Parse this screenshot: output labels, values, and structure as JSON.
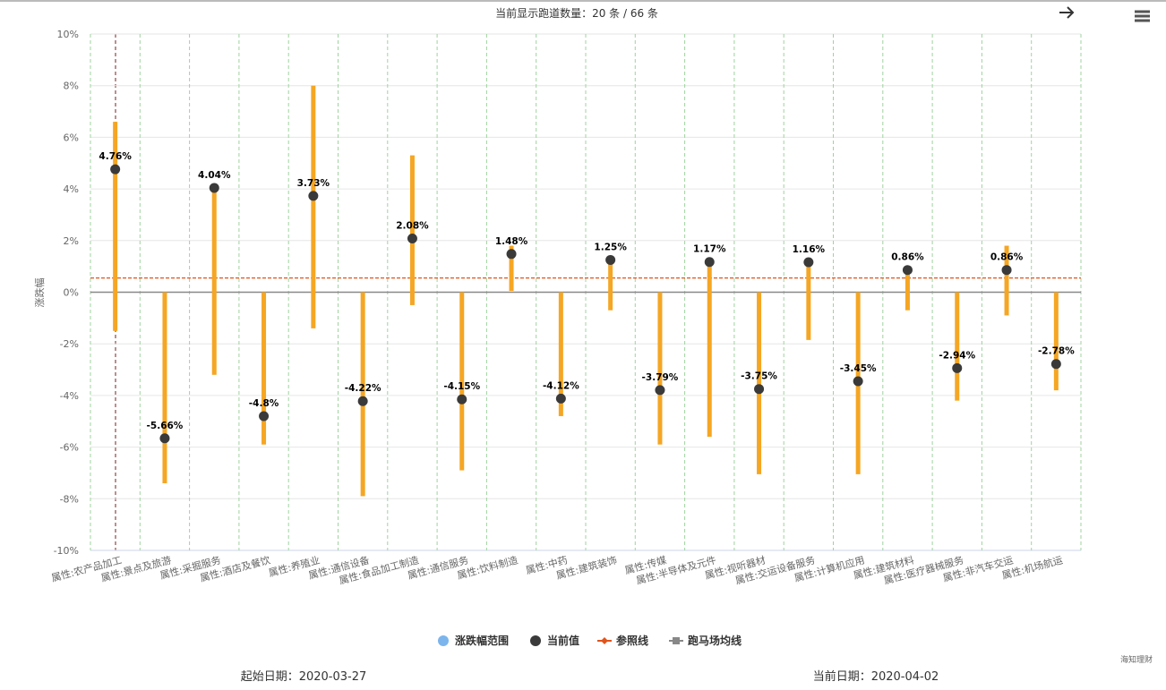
{
  "header": "当前显示跑道数量：20 条 / 66 条",
  "chart_data": {
    "type": "range_dot",
    "y_label": "涨跌幅",
    "categories": [
      "属性:农产品加工",
      "属性:景点及旅游",
      "属性:采掘服务",
      "属性:酒店及餐饮",
      "属性:养殖业",
      "属性:通信设备",
      "属性:食品加工制造",
      "属性:通信服务",
      "属性:饮料制造",
      "属性:中药",
      "属性:建筑装饰",
      "属性:传媒",
      "属性:半导体及元件",
      "属性:视听器材",
      "属性:交运设备服务",
      "属性:计算机应用",
      "属性:建筑材料",
      "属性:医疗器械服务",
      "属性:非汽车交运",
      "属性:机场航运"
    ],
    "range": {
      "name": "涨跌幅范围",
      "color": "#f5a623",
      "low": [
        -1.5,
        -7.4,
        -3.2,
        -5.9,
        -1.4,
        -7.9,
        -0.5,
        -6.9,
        0.05,
        -4.8,
        -0.7,
        -5.9,
        -5.6,
        -7.05,
        -1.85,
        -7.05,
        -0.7,
        -4.2,
        -0.9,
        -3.8
      ],
      "high": [
        6.6,
        0,
        4.05,
        0,
        8.0,
        0,
        5.3,
        0,
        1.8,
        0,
        1.25,
        0,
        1.17,
        0,
        1.16,
        0,
        0.86,
        0,
        1.8,
        0
      ]
    },
    "current": {
      "name": "当前值",
      "color": "#3a3a3a",
      "values": [
        4.76,
        -5.66,
        4.04,
        -4.8,
        3.73,
        -4.22,
        2.08,
        -4.15,
        1.48,
        -4.12,
        1.25,
        -3.79,
        1.17,
        -3.75,
        1.16,
        -3.45,
        0.86,
        -2.94,
        0.86,
        -2.78
      ],
      "value_labels": [
        "4.76%",
        "-5.66%",
        "4.04%",
        "-4.8%",
        "3.73%",
        "-4.22%",
        "2.08%",
        "-4.15%",
        "1.48%",
        "-4.12%",
        "1.25%",
        "-3.79%",
        "1.17%",
        "-3.75%",
        "1.16%",
        "-3.45%",
        "0.86%",
        "-2.94%",
        "0.86%",
        "-2.78%"
      ]
    },
    "reference_lines": [
      {
        "name": "参照线",
        "value": 0.55,
        "color": "#e0541c"
      },
      {
        "name": "跑马场均线",
        "value": 0,
        "color": "#888888"
      }
    ],
    "legend_range_color": "#7cb5ec",
    "ylim": [
      -10,
      10
    ],
    "yticks": [
      {
        "value": -10,
        "label": "-10%"
      },
      {
        "value": -8,
        "label": "-8%"
      },
      {
        "value": -6,
        "label": "-6%"
      },
      {
        "value": -4,
        "label": "-4%"
      },
      {
        "value": -2,
        "label": "-2%"
      },
      {
        "value": 0,
        "label": "0%"
      },
      {
        "value": 2,
        "label": "2%"
      },
      {
        "value": 4,
        "label": "4%"
      },
      {
        "value": 6,
        "label": "6%"
      },
      {
        "value": 8,
        "label": "8%"
      },
      {
        "value": 10,
        "label": "10%"
      }
    ],
    "grid": true
  },
  "footer": {
    "start": "起始日期：2020-03-27",
    "current": "当前日期：2020-04-02",
    "watermark": "海知理财"
  }
}
